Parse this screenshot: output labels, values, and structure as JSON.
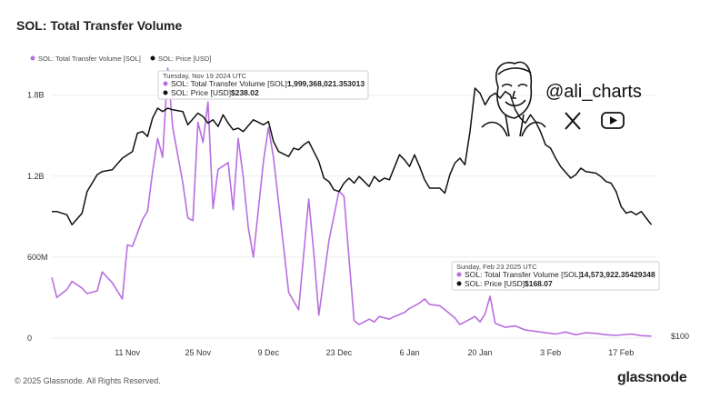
{
  "title": "SOL: Total Transfer Volume",
  "footer": "© 2025 Glassnode. All Rights Reserved.",
  "brand": "glassnode",
  "watermark": {
    "handle": "@ali_charts",
    "icons": [
      "x-logo-icon",
      "youtube-icon"
    ]
  },
  "colors": {
    "volume": "#b86ee0",
    "price": "#111111",
    "grid": "#ececec"
  },
  "tooltips": [
    {
      "date": "Tuesday, Nov 19 2024 UTC",
      "volume_label": "SOL: Total Transfer Volume [SOL]:",
      "volume_value": "1,999,368,021.353013",
      "price_label": "SOL: Price [USD]:",
      "price_value": "$238.02"
    },
    {
      "date": "Sunday, Feb 23 2025 UTC",
      "volume_label": "SOL: Total Transfer Volume [SOL]:",
      "volume_value": "14,573,922.35429348",
      "price_label": "SOL: Price [USD]:",
      "price_value": "$168.07"
    }
  ],
  "chart_data": {
    "type": "line",
    "title": "SOL: Total Transfer Volume",
    "legend": [
      "SOL: Total Transfer Volume [SOL]",
      "SOL: Price [USD]"
    ],
    "legend_position": "top-left",
    "x_tick_labels": [
      "11 Nov",
      "25 Nov",
      "9 Dec",
      "23 Dec",
      "6 Jan",
      "20 Jan",
      "3 Feb",
      "17 Feb"
    ],
    "x_tick_dates": [
      "2024-11-11",
      "2024-11-25",
      "2024-12-09",
      "2024-12-23",
      "2025-01-06",
      "2025-01-20",
      "2025-02-03",
      "2025-02-17"
    ],
    "xlim": [
      "2024-10-27",
      "2025-02-24"
    ],
    "left_axis": {
      "ticks": [
        0,
        600000000,
        1200000000,
        1800000000
      ],
      "tick_labels": [
        "0",
        "600M",
        "1.2B",
        "1.8B"
      ],
      "ylim": [
        0,
        2000000000
      ]
    },
    "right_axis": {
      "tick_labels": [
        "$100"
      ]
    },
    "grid": true,
    "series": [
      {
        "name": "SOL: Total Transfer Volume [SOL]",
        "axis": "left",
        "points": [
          [
            "2024-10-27",
            450000000
          ],
          [
            "2024-10-28",
            300000000
          ],
          [
            "2024-10-30",
            360000000
          ],
          [
            "2024-10-31",
            420000000
          ],
          [
            "2024-11-02",
            370000000
          ],
          [
            "2024-11-03",
            330000000
          ],
          [
            "2024-11-05",
            350000000
          ],
          [
            "2024-11-06",
            490000000
          ],
          [
            "2024-11-08",
            410000000
          ],
          [
            "2024-11-10",
            290000000
          ],
          [
            "2024-11-11",
            690000000
          ],
          [
            "2024-11-12",
            680000000
          ],
          [
            "2024-11-14",
            880000000
          ],
          [
            "2024-11-15",
            940000000
          ],
          [
            "2024-11-16",
            1230000000
          ],
          [
            "2024-11-17",
            1480000000
          ],
          [
            "2024-11-18",
            1340000000
          ],
          [
            "2024-11-19",
            1999368021
          ],
          [
            "2024-11-20",
            1560000000
          ],
          [
            "2024-11-22",
            1150000000
          ],
          [
            "2024-11-23",
            890000000
          ],
          [
            "2024-11-24",
            870000000
          ],
          [
            "2024-11-25",
            1600000000
          ],
          [
            "2024-11-26",
            1450000000
          ],
          [
            "2024-11-27",
            1750000000
          ],
          [
            "2024-11-28",
            960000000
          ],
          [
            "2024-11-29",
            1250000000
          ],
          [
            "2024-12-01",
            1300000000
          ],
          [
            "2024-12-02",
            950000000
          ],
          [
            "2024-12-03",
            1480000000
          ],
          [
            "2024-12-04",
            1190000000
          ],
          [
            "2024-12-05",
            820000000
          ],
          [
            "2024-12-06",
            600000000
          ],
          [
            "2024-12-08",
            1310000000
          ],
          [
            "2024-12-09",
            1560000000
          ],
          [
            "2024-12-10",
            1340000000
          ],
          [
            "2024-12-12",
            680000000
          ],
          [
            "2024-12-13",
            340000000
          ],
          [
            "2024-12-15",
            210000000
          ],
          [
            "2024-12-17",
            1030000000
          ],
          [
            "2024-12-18",
            630000000
          ],
          [
            "2024-12-19",
            170000000
          ],
          [
            "2024-12-21",
            720000000
          ],
          [
            "2024-12-23",
            1090000000
          ],
          [
            "2024-12-24",
            1050000000
          ],
          [
            "2024-12-26",
            130000000
          ],
          [
            "2024-12-27",
            100000000
          ],
          [
            "2024-12-29",
            140000000
          ],
          [
            "2024-12-30",
            120000000
          ],
          [
            "2024-12-31",
            160000000
          ],
          [
            "2025-01-02",
            140000000
          ],
          [
            "2025-01-03",
            160000000
          ],
          [
            "2025-01-05",
            190000000
          ],
          [
            "2025-01-06",
            220000000
          ],
          [
            "2025-01-08",
            260000000
          ],
          [
            "2025-01-09",
            290000000
          ],
          [
            "2025-01-10",
            250000000
          ],
          [
            "2025-01-12",
            240000000
          ],
          [
            "2025-01-13",
            210000000
          ],
          [
            "2025-01-15",
            150000000
          ],
          [
            "2025-01-16",
            100000000
          ],
          [
            "2025-01-18",
            140000000
          ],
          [
            "2025-01-19",
            160000000
          ],
          [
            "2025-01-20",
            120000000
          ],
          [
            "2025-01-21",
            180000000
          ],
          [
            "2025-01-22",
            310000000
          ],
          [
            "2025-01-23",
            110000000
          ],
          [
            "2025-01-25",
            80000000
          ],
          [
            "2025-01-27",
            90000000
          ],
          [
            "2025-01-29",
            60000000
          ],
          [
            "2025-01-31",
            50000000
          ],
          [
            "2025-02-02",
            40000000
          ],
          [
            "2025-02-04",
            30000000
          ],
          [
            "2025-02-06",
            45000000
          ],
          [
            "2025-02-08",
            25000000
          ],
          [
            "2025-02-10",
            40000000
          ],
          [
            "2025-02-12",
            35000000
          ],
          [
            "2025-02-14",
            25000000
          ],
          [
            "2025-02-16",
            20000000
          ],
          [
            "2025-02-19",
            30000000
          ],
          [
            "2025-02-21",
            18000000
          ],
          [
            "2025-02-23",
            14573922
          ]
        ]
      },
      {
        "name": "SOL: Price [USD]",
        "axis": "right",
        "points": [
          [
            "2024-10-27",
            176
          ],
          [
            "2024-10-28",
            176
          ],
          [
            "2024-10-30",
            174
          ],
          [
            "2024-10-31",
            168
          ],
          [
            "2024-11-02",
            175
          ],
          [
            "2024-11-03",
            188
          ],
          [
            "2024-11-05",
            198
          ],
          [
            "2024-11-06",
            200
          ],
          [
            "2024-11-08",
            201
          ],
          [
            "2024-11-10",
            208
          ],
          [
            "2024-11-12",
            212
          ],
          [
            "2024-11-13",
            223
          ],
          [
            "2024-11-14",
            224
          ],
          [
            "2024-11-15",
            221
          ],
          [
            "2024-11-16",
            232
          ],
          [
            "2024-11-17",
            238
          ],
          [
            "2024-11-18",
            236
          ],
          [
            "2024-11-19",
            238.02
          ],
          [
            "2024-11-20",
            237
          ],
          [
            "2024-11-22",
            236
          ],
          [
            "2024-11-23",
            228
          ],
          [
            "2024-11-25",
            235
          ],
          [
            "2024-11-26",
            233
          ],
          [
            "2024-11-27",
            229
          ],
          [
            "2024-11-28",
            231
          ],
          [
            "2024-11-29",
            227
          ],
          [
            "2024-11-30",
            234
          ],
          [
            "2024-12-01",
            229
          ],
          [
            "2024-12-02",
            225
          ],
          [
            "2024-12-03",
            226
          ],
          [
            "2024-12-04",
            224
          ],
          [
            "2024-12-06",
            231
          ],
          [
            "2024-12-08",
            228
          ],
          [
            "2024-12-09",
            230
          ],
          [
            "2024-12-10",
            218
          ],
          [
            "2024-12-11",
            212
          ],
          [
            "2024-12-13",
            209
          ],
          [
            "2024-12-14",
            214
          ],
          [
            "2024-12-15",
            213
          ],
          [
            "2024-12-16",
            216
          ],
          [
            "2024-12-17",
            218
          ],
          [
            "2024-12-19",
            206
          ],
          [
            "2024-12-20",
            196
          ],
          [
            "2024-12-21",
            194
          ],
          [
            "2024-12-22",
            189
          ],
          [
            "2024-12-23",
            188
          ],
          [
            "2024-12-24",
            193
          ],
          [
            "2024-12-25",
            196
          ],
          [
            "2024-12-26",
            193
          ],
          [
            "2024-12-27",
            197
          ],
          [
            "2024-12-28",
            194
          ],
          [
            "2024-12-29",
            191
          ],
          [
            "2024-12-30",
            197
          ],
          [
            "2024-12-31",
            194
          ],
          [
            "2025-01-01",
            196
          ],
          [
            "2025-01-02",
            195
          ],
          [
            "2025-01-04",
            210
          ],
          [
            "2025-01-05",
            207
          ],
          [
            "2025-01-06",
            203
          ],
          [
            "2025-01-07",
            210
          ],
          [
            "2025-01-08",
            203
          ],
          [
            "2025-01-09",
            195
          ],
          [
            "2025-01-10",
            190
          ],
          [
            "2025-01-12",
            190
          ],
          [
            "2025-01-13",
            187
          ],
          [
            "2025-01-14",
            198
          ],
          [
            "2025-01-15",
            205
          ],
          [
            "2025-01-16",
            208
          ],
          [
            "2025-01-17",
            204
          ],
          [
            "2025-01-18",
            224
          ],
          [
            "2025-01-19",
            250
          ],
          [
            "2025-01-20",
            247
          ],
          [
            "2025-01-21",
            240
          ],
          [
            "2025-01-22",
            245
          ],
          [
            "2025-01-23",
            247
          ],
          [
            "2025-01-24",
            244
          ],
          [
            "2025-01-25",
            248
          ],
          [
            "2025-01-26",
            246
          ],
          [
            "2025-01-27",
            237
          ],
          [
            "2025-01-28",
            232
          ],
          [
            "2025-01-29",
            229
          ],
          [
            "2025-01-30",
            234
          ],
          [
            "2025-01-31",
            230
          ],
          [
            "2025-02-01",
            224
          ],
          [
            "2025-02-02",
            216
          ],
          [
            "2025-02-03",
            214
          ],
          [
            "2025-02-04",
            208
          ],
          [
            "2025-02-05",
            203
          ],
          [
            "2025-02-07",
            196
          ],
          [
            "2025-02-08",
            198
          ],
          [
            "2025-02-09",
            202
          ],
          [
            "2025-02-10",
            200
          ],
          [
            "2025-02-12",
            199
          ],
          [
            "2025-02-13",
            197
          ],
          [
            "2025-02-14",
            194
          ],
          [
            "2025-02-15",
            193
          ],
          [
            "2025-02-16",
            188
          ],
          [
            "2025-02-17",
            179
          ],
          [
            "2025-02-18",
            175
          ],
          [
            "2025-02-19",
            176
          ],
          [
            "2025-02-20",
            174
          ],
          [
            "2025-02-21",
            176
          ],
          [
            "2025-02-22",
            172
          ],
          [
            "2025-02-23",
            168.07
          ]
        ]
      }
    ]
  }
}
